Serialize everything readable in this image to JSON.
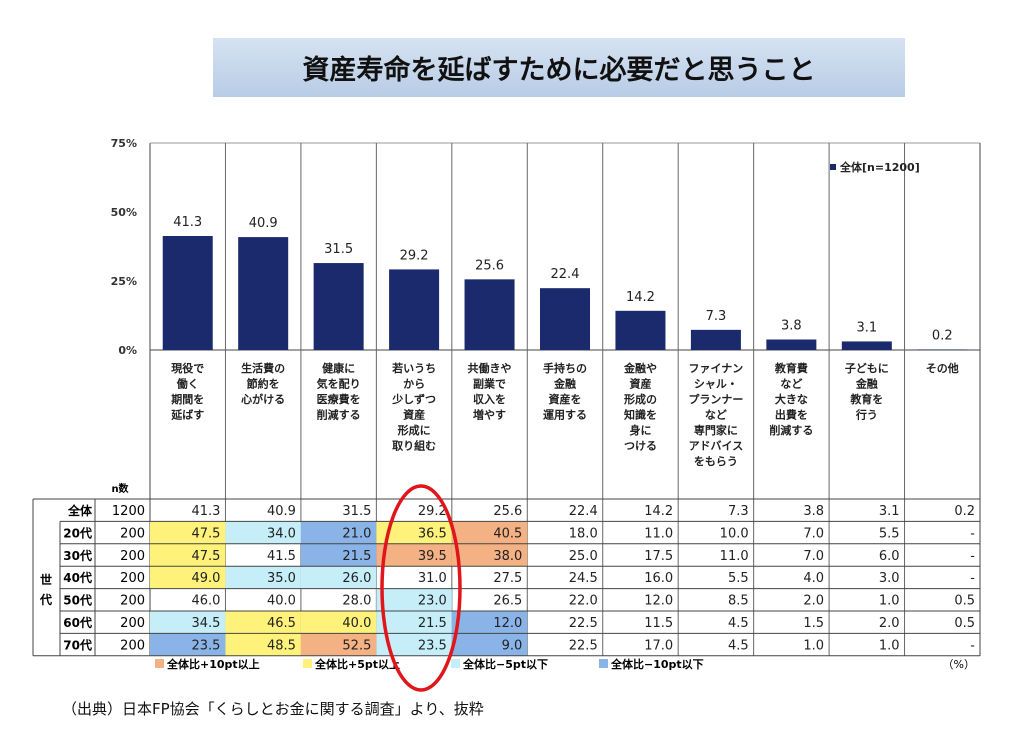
{
  "title": "資産寿命を延ばすために必要だと思うこと",
  "source": "（出典）日本FP協会「くらしとお金に関する調査」より、抜粋",
  "chart_data": {
    "type": "bar",
    "ylim": [
      0,
      75
    ],
    "yticks": [
      "0%",
      "25%",
      "50%",
      "75%"
    ],
    "legend": "■全体[n=1200]",
    "legend_position": "top-right",
    "bar_color": "#1a2a6c",
    "categories": [
      "現役で\n働く\n期間を\n延ばす",
      "生活費の\n節約を\n心がける",
      "健康に\n気を配り\n医療費を\n削減する",
      "若いうち\nから\n少しずつ\n資産\n形成に\n取り組む",
      "共働きや\n副業で\n収入を\n増やす",
      "手持ちの\n金融\n資産を\n運用する",
      "金融や\n資産\n形成の\n知識を\n身に\nつける",
      "ファイナン\nシャル・\nプランナー\nなど\n専門家に\nアドバイス\nをもらう",
      "教育費\nなど\n大きな\n出費を\n削減する",
      "子どもに\n金融\n教育を\n行う",
      "その他"
    ],
    "values": [
      41.3,
      40.9,
      31.5,
      29.2,
      25.6,
      22.4,
      14.2,
      7.3,
      3.8,
      3.1,
      0.2
    ],
    "value_labels": [
      "41.3",
      "40.9",
      "31.5",
      "29.2",
      "25.6",
      "22.4",
      "14.2",
      "7.3",
      "3.8",
      "3.1",
      "0.2"
    ]
  },
  "table": {
    "n_header": "n数",
    "group_label": "世代",
    "rows": [
      {
        "label": "全体",
        "n": "1200",
        "values": [
          "41.3",
          "40.9",
          "31.5",
          "29.2",
          "25.6",
          "22.4",
          "14.2",
          "7.3",
          "3.8",
          "3.1",
          "0.2"
        ],
        "flags": [
          "",
          "",
          "",
          "",
          "",
          "",
          "",
          "",
          "",
          "",
          ""
        ]
      },
      {
        "label": "20代",
        "n": "200",
        "values": [
          "47.5",
          "34.0",
          "21.0",
          "36.5",
          "40.5",
          "18.0",
          "11.0",
          "10.0",
          "7.0",
          "5.5",
          "-"
        ],
        "flags": [
          "y",
          "c",
          "b",
          "y",
          "o",
          "",
          "",
          "",
          "",
          "",
          ""
        ]
      },
      {
        "label": "30代",
        "n": "200",
        "values": [
          "47.5",
          "41.5",
          "21.5",
          "39.5",
          "38.0",
          "25.0",
          "17.5",
          "11.0",
          "7.0",
          "6.0",
          "-"
        ],
        "flags": [
          "y",
          "",
          "b",
          "o",
          "o",
          "",
          "",
          "",
          "",
          "",
          ""
        ]
      },
      {
        "label": "40代",
        "n": "200",
        "values": [
          "49.0",
          "35.0",
          "26.0",
          "31.0",
          "27.5",
          "24.5",
          "16.0",
          "5.5",
          "4.0",
          "3.0",
          "-"
        ],
        "flags": [
          "y",
          "c",
          "c",
          "",
          "",
          "",
          "",
          "",
          "",
          "",
          ""
        ]
      },
      {
        "label": "50代",
        "n": "200",
        "values": [
          "46.0",
          "40.0",
          "28.0",
          "23.0",
          "26.5",
          "22.0",
          "12.0",
          "8.5",
          "2.0",
          "1.0",
          "0.5"
        ],
        "flags": [
          "",
          "",
          "",
          "c",
          "",
          "",
          "",
          "",
          "",
          "",
          ""
        ]
      },
      {
        "label": "60代",
        "n": "200",
        "values": [
          "34.5",
          "46.5",
          "40.0",
          "21.5",
          "12.0",
          "22.5",
          "11.5",
          "4.5",
          "1.5",
          "2.0",
          "0.5"
        ],
        "flags": [
          "c",
          "y",
          "y",
          "c",
          "b",
          "",
          "",
          "",
          "",
          "",
          ""
        ]
      },
      {
        "label": "70代",
        "n": "200",
        "values": [
          "23.5",
          "48.5",
          "52.5",
          "23.5",
          "9.0",
          "22.5",
          "17.0",
          "4.5",
          "1.0",
          "1.0",
          "-"
        ],
        "flags": [
          "b",
          "y",
          "o",
          "c",
          "b",
          "",
          "",
          "",
          "",
          "",
          ""
        ]
      }
    ],
    "legend": [
      {
        "key": "o",
        "label": "全体比+10pt以上",
        "color": "#f4b183"
      },
      {
        "key": "y",
        "label": "全体比+5pt以上",
        "color": "#fff27a"
      },
      {
        "key": "c",
        "label": "全体比−5pt以下",
        "color": "#c6eef8"
      },
      {
        "key": "b",
        "label": "全体比−10pt以下",
        "color": "#8ab4e8"
      }
    ],
    "unit": "（%）"
  },
  "highlight_color": "#e0161b"
}
